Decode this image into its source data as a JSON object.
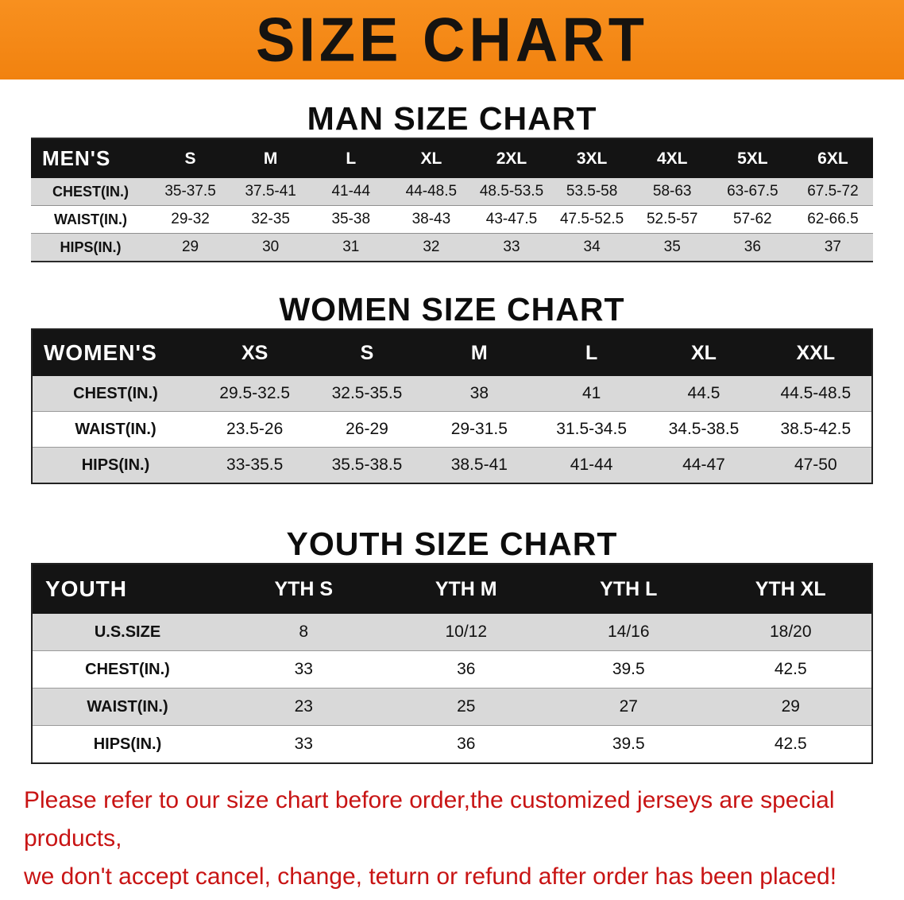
{
  "banner": {
    "title": "SIZE CHART",
    "bg_color": "#f5851a"
  },
  "men": {
    "heading": "MAN SIZE CHART",
    "header_label": "MEN'S",
    "columns": [
      "S",
      "M",
      "L",
      "XL",
      "2XL",
      "3XL",
      "4XL",
      "5XL",
      "6XL"
    ],
    "rows": [
      {
        "label": "CHEST(IN.)",
        "values": [
          "35-37.5",
          "37.5-41",
          "41-44",
          "44-48.5",
          "48.5-53.5",
          "53.5-58",
          "58-63",
          "63-67.5",
          "67.5-72"
        ]
      },
      {
        "label": "WAIST(IN.)",
        "values": [
          "29-32",
          "32-35",
          "35-38",
          "38-43",
          "43-47.5",
          "47.5-52.5",
          "52.5-57",
          "57-62",
          "62-66.5"
        ]
      },
      {
        "label": "HIPS(IN.)",
        "values": [
          "29",
          "30",
          "31",
          "32",
          "33",
          "34",
          "35",
          "36",
          "37"
        ]
      }
    ]
  },
  "women": {
    "heading": "WOMEN SIZE CHART",
    "header_label": "WOMEN'S",
    "columns": [
      "XS",
      "S",
      "M",
      "L",
      "XL",
      "XXL"
    ],
    "rows": [
      {
        "label": "CHEST(IN.)",
        "values": [
          "29.5-32.5",
          "32.5-35.5",
          "38",
          "41",
          "44.5",
          "44.5-48.5"
        ]
      },
      {
        "label": "WAIST(IN.)",
        "values": [
          "23.5-26",
          "26-29",
          "29-31.5",
          "31.5-34.5",
          "34.5-38.5",
          "38.5-42.5"
        ]
      },
      {
        "label": "HIPS(IN.)",
        "values": [
          "33-35.5",
          "35.5-38.5",
          "38.5-41",
          "41-44",
          "44-47",
          "47-50"
        ]
      }
    ]
  },
  "youth": {
    "heading": "YOUTH SIZE CHART",
    "header_label": "YOUTH",
    "columns": [
      "YTH S",
      "YTH M",
      "YTH L",
      "YTH XL"
    ],
    "rows": [
      {
        "label": "U.S.SIZE",
        "values": [
          "8",
          "10/12",
          "14/16",
          "18/20"
        ]
      },
      {
        "label": "CHEST(IN.)",
        "values": [
          "33",
          "36",
          "39.5",
          "42.5"
        ]
      },
      {
        "label": "WAIST(IN.)",
        "values": [
          "23",
          "25",
          "27",
          "29"
        ]
      },
      {
        "label": "HIPS(IN.)",
        "values": [
          "33",
          "36",
          "39.5",
          "42.5"
        ]
      }
    ]
  },
  "footer": {
    "line1": "Please refer to our size chart before order,the customized jerseys are special products,",
    "line2": "we don't accept cancel, change, teturn or refund after order has been placed!"
  }
}
